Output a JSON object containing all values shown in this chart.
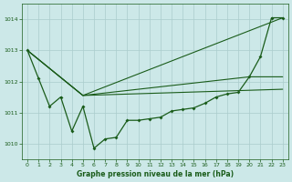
{
  "title": "Graphe pression niveau de la mer (hPa)",
  "bg_color": "#cce8e8",
  "grid_color": "#aacccc",
  "line_color": "#1a5c1a",
  "xlim": [
    -0.5,
    23.5
  ],
  "ylim": [
    1009.5,
    1014.5
  ],
  "yticks": [
    1010,
    1011,
    1012,
    1013,
    1014
  ],
  "xticks": [
    0,
    1,
    2,
    3,
    4,
    5,
    6,
    7,
    8,
    9,
    10,
    11,
    12,
    13,
    14,
    15,
    16,
    17,
    18,
    19,
    20,
    21,
    22,
    23
  ],
  "series_main": {
    "x": [
      0,
      1,
      2,
      3,
      4,
      5,
      6,
      7,
      8,
      9,
      10,
      11,
      12,
      13,
      14,
      15,
      16,
      17,
      18,
      19,
      20,
      21,
      22,
      23
    ],
    "y": [
      1013.0,
      1012.1,
      1011.2,
      1011.5,
      1010.4,
      1011.2,
      1009.85,
      1010.15,
      1010.2,
      1010.75,
      1010.75,
      1010.8,
      1010.85,
      1011.05,
      1011.1,
      1011.15,
      1011.3,
      1011.5,
      1011.6,
      1011.65,
      1012.15,
      1012.8,
      1014.05,
      1014.05
    ]
  },
  "series_smooth": [
    {
      "x": [
        0,
        5,
        23
      ],
      "y": [
        1013.0,
        1011.55,
        1014.05
      ]
    },
    {
      "x": [
        0,
        5,
        20,
        23
      ],
      "y": [
        1013.0,
        1011.55,
        1012.15,
        1012.15
      ]
    },
    {
      "x": [
        0,
        5,
        23
      ],
      "y": [
        1013.0,
        1011.55,
        1011.75
      ]
    }
  ]
}
